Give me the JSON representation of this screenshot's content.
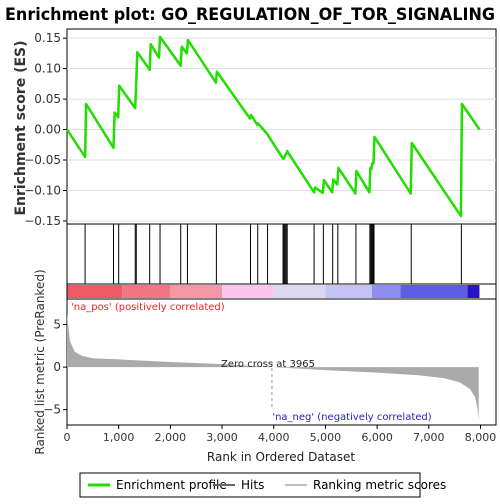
{
  "chart_data": {
    "type": "line",
    "title": "Enrichment plot: GO_REGULATION_OF_TOR_SIGNALING",
    "es_panel": {
      "ylabel": "Enrichment score (ES)",
      "yticks": [
        0.15,
        0.1,
        0.05,
        0.0,
        -0.05,
        -0.1,
        -0.15
      ],
      "tick_labels": [
        "0.15",
        "0.10",
        "0.05",
        "0.00",
        "−0.05",
        "−0.10",
        "−0.15"
      ],
      "ylim": [
        -0.155,
        0.165
      ],
      "series_color": "#22dd00",
      "profile": [
        [
          0,
          0.0
        ],
        [
          350,
          -0.045
        ],
        [
          370,
          0.042
        ],
        [
          900,
          -0.03
        ],
        [
          920,
          0.028
        ],
        [
          990,
          0.02
        ],
        [
          1010,
          0.072
        ],
        [
          1320,
          0.035
        ],
        [
          1340,
          0.08
        ],
        [
          1360,
          0.127
        ],
        [
          1600,
          0.098
        ],
        [
          1620,
          0.14
        ],
        [
          1780,
          0.118
        ],
        [
          1800,
          0.152
        ],
        [
          2200,
          0.105
        ],
        [
          2220,
          0.136
        ],
        [
          2320,
          0.125
        ],
        [
          2340,
          0.147
        ],
        [
          2880,
          0.077
        ],
        [
          2900,
          0.095
        ],
        [
          3540,
          0.018
        ],
        [
          3560,
          0.024
        ],
        [
          3680,
          0.008
        ],
        [
          3700,
          0.01
        ],
        [
          3880,
          -0.008
        ],
        [
          4180,
          -0.048
        ],
        [
          4200,
          -0.047
        ],
        [
          4220,
          -0.042
        ],
        [
          4240,
          -0.04
        ],
        [
          4260,
          -0.035
        ],
        [
          4270,
          -0.037
        ],
        [
          4780,
          -0.103
        ],
        [
          4800,
          -0.095
        ],
        [
          4950,
          -0.104
        ],
        [
          4970,
          -0.083
        ],
        [
          5130,
          -0.103
        ],
        [
          5150,
          -0.082
        ],
        [
          5230,
          -0.09
        ],
        [
          5250,
          -0.063
        ],
        [
          5580,
          -0.105
        ],
        [
          5600,
          -0.068
        ],
        [
          5850,
          -0.103
        ],
        [
          5870,
          -0.063
        ],
        [
          5890,
          -0.065
        ],
        [
          5910,
          -0.055
        ],
        [
          5930,
          -0.055
        ],
        [
          5950,
          -0.012
        ],
        [
          6650,
          -0.105
        ],
        [
          6670,
          -0.022
        ],
        [
          7620,
          -0.142
        ],
        [
          7640,
          0.042
        ],
        [
          7980,
          0.0
        ]
      ]
    },
    "hits_panel": {
      "positions": [
        350,
        900,
        1000,
        1320,
        1340,
        1600,
        1800,
        2200,
        2330,
        2890,
        3550,
        3690,
        3880,
        4180,
        4200,
        4220,
        4240,
        4260,
        4780,
        4960,
        5140,
        5240,
        5590,
        5860,
        5880,
        5900,
        5920,
        5940,
        6660,
        7630
      ]
    },
    "ranked_panel": {
      "ylabel": "Ranked list metric (PreRanked)",
      "yticks": [
        5,
        0,
        -5
      ],
      "tick_labels": [
        "5",
        "0",
        "−5"
      ],
      "ylim": [
        -6.8,
        8.0
      ],
      "fill_color": "#aaaaaa",
      "curve": [
        [
          0,
          6.3
        ],
        [
          60,
          3.0
        ],
        [
          150,
          1.8
        ],
        [
          300,
          1.3
        ],
        [
          500,
          1.05
        ],
        [
          1000,
          0.9
        ],
        [
          2000,
          0.6
        ],
        [
          3000,
          0.35
        ],
        [
          3965,
          0.0
        ],
        [
          5000,
          -0.35
        ],
        [
          6000,
          -0.65
        ],
        [
          6800,
          -0.95
        ],
        [
          7300,
          -1.3
        ],
        [
          7600,
          -1.8
        ],
        [
          7800,
          -2.6
        ],
        [
          7900,
          -3.6
        ],
        [
          7940,
          -4.8
        ],
        [
          7965,
          -6.2
        ]
      ],
      "zero_cross_label": "Zero cross at 3965",
      "zero_cross": 3965,
      "pos_label": "'na_pos' (positively correlated)",
      "neg_label": "'na_neg' (negatively correlated)",
      "pos_color": "#ee2222",
      "neg_color": "#2222cc"
    },
    "x": {
      "label": "Rank in Ordered Dataset",
      "ticks": [
        0,
        1000,
        2000,
        3000,
        4000,
        5000,
        6000,
        7000,
        8000
      ],
      "tick_labels": [
        "0",
        "1,000",
        "2,000",
        "3,000",
        "4,000",
        "5,000",
        "6,000",
        "7,000",
        "8,000"
      ],
      "xlim": [
        0,
        8300
      ]
    },
    "heat_bar": [
      {
        "from": 0,
        "to": 1070,
        "color": "#ee5a66"
      },
      {
        "from": 1070,
        "to": 2000,
        "color": "#ef7783"
      },
      {
        "from": 2000,
        "to": 3000,
        "color": "#f497a6"
      },
      {
        "from": 3000,
        "to": 4000,
        "color": "#f8c6ee"
      },
      {
        "from": 4000,
        "to": 5000,
        "color": "#dcd8f4"
      },
      {
        "from": 5000,
        "to": 5900,
        "color": "#c4c4f4"
      },
      {
        "from": 5900,
        "to": 6450,
        "color": "#8e8ef0"
      },
      {
        "from": 6450,
        "to": 7750,
        "color": "#5d5de6"
      },
      {
        "from": 7750,
        "to": 7980,
        "color": "#2a12c8"
      }
    ],
    "legend": {
      "position": "bottom",
      "items": [
        {
          "label": "Enrichment profile",
          "color": "#22dd00"
        },
        {
          "label": "Hits",
          "color": "#666666"
        },
        {
          "label": "Ranking metric scores",
          "color": "#bbbbbb"
        }
      ]
    }
  }
}
